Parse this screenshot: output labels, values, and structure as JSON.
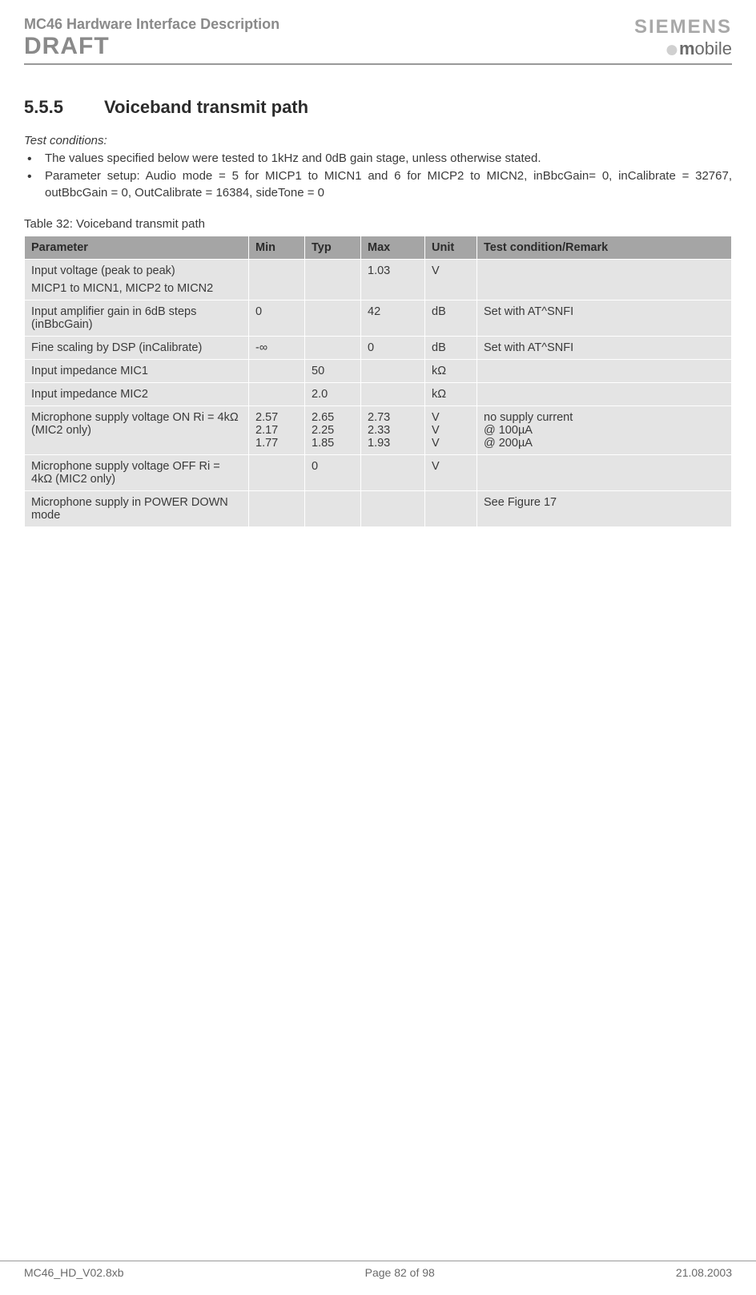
{
  "header": {
    "doc_title": "MC46 Hardware Interface Description",
    "draft": "DRAFT",
    "brand": "SIEMENS",
    "sub_brand": "obile"
  },
  "section": {
    "number": "5.5.5",
    "title": "Voiceband transmit path"
  },
  "conditions": {
    "heading": "Test conditions:",
    "items": [
      "The values specified below were tested to 1kHz and 0dB gain stage, unless otherwise stated.",
      "Parameter setup: Audio mode = 5 for MICP1 to MICN1 and 6 for MICP2 to MICN2, inBbcGain= 0, inCalibrate = 32767, outBbcGain = 0, OutCalibrate = 16384, sideTone = 0"
    ]
  },
  "table": {
    "caption": "Table 32: Voiceband transmit path",
    "columns": [
      "Parameter",
      "Min",
      "Typ",
      "Max",
      "Unit",
      "Test condition/Remark"
    ],
    "rows": [
      {
        "param": "Input voltage (peak to peak)",
        "param_sub": "MICP1 to MICN1, MICP2 to MICN2",
        "min": "",
        "typ": "",
        "max": "1.03",
        "unit": "V",
        "remark": ""
      },
      {
        "param": "Input amplifier gain in 6dB steps (inBbcGain)",
        "min": "0",
        "typ": "",
        "max": "42",
        "unit": "dB",
        "remark": "Set with AT^SNFI"
      },
      {
        "param": "Fine scaling by DSP (inCalibrate)",
        "min": "-∞",
        "typ": "",
        "max": "0",
        "unit": "dB",
        "remark": "Set with AT^SNFI"
      },
      {
        "param": "Input impedance MIC1",
        "min": "",
        "typ": "50",
        "max": "",
        "unit": "kΩ",
        "remark": ""
      },
      {
        "param": "Input impedance MIC2",
        "min": "",
        "typ": "2.0",
        "max": "",
        "unit": "kΩ",
        "remark": ""
      },
      {
        "param": "Microphone supply voltage ON Ri = 4kΩ (MIC2 only)",
        "min_lines": [
          "2.57",
          "2.17",
          "1.77"
        ],
        "typ_lines": [
          "2.65",
          "2.25",
          "1.85"
        ],
        "max_lines": [
          "2.73",
          "2.33",
          "1.93"
        ],
        "unit_lines": [
          "V",
          "V",
          "V"
        ],
        "remark_lines": [
          "no supply current",
          "@ 100µA",
          "@ 200µA"
        ]
      },
      {
        "param": "Microphone supply voltage OFF Ri = 4kΩ (MIC2 only)",
        "min": "",
        "typ": "0",
        "max": "",
        "unit": "V",
        "remark": ""
      },
      {
        "param": "Microphone supply in POWER DOWN mode",
        "min": "",
        "typ": "",
        "max": "",
        "unit": "",
        "remark": "See Figure 17"
      }
    ]
  },
  "footer": {
    "left": "MC46_HD_V02.8xb",
    "center": "Page 82 of 98",
    "right": "21.08.2003"
  }
}
